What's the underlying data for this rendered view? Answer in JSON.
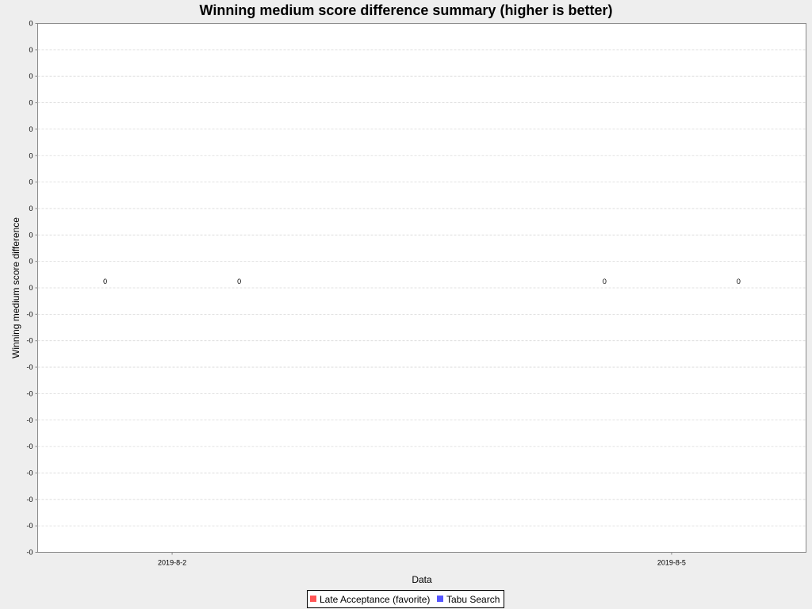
{
  "chart_data": {
    "type": "bar",
    "title": "Winning medium score difference summary (higher is better)",
    "xlabel": "Data",
    "ylabel": "Winning medium score difference",
    "categories": [
      "2019-8-2",
      "2019-8-5"
    ],
    "series": [
      {
        "name": "Late Acceptance (favorite)",
        "color": "#ff5555",
        "values": [
          0,
          0
        ]
      },
      {
        "name": "Tabu Search",
        "color": "#5555ff",
        "values": [
          0,
          0
        ]
      }
    ],
    "bar_labels": [
      "0",
      "0",
      "0",
      "0"
    ],
    "y_tick_labels": [
      "0",
      "0",
      "0",
      "0",
      "0",
      "0",
      "0",
      "0",
      "0",
      "0",
      "0",
      "-0",
      "-0",
      "-0",
      "-0",
      "-0",
      "-0",
      "-0",
      "-0",
      "-0",
      "-0"
    ],
    "grid": true,
    "legend_position": "bottom"
  }
}
